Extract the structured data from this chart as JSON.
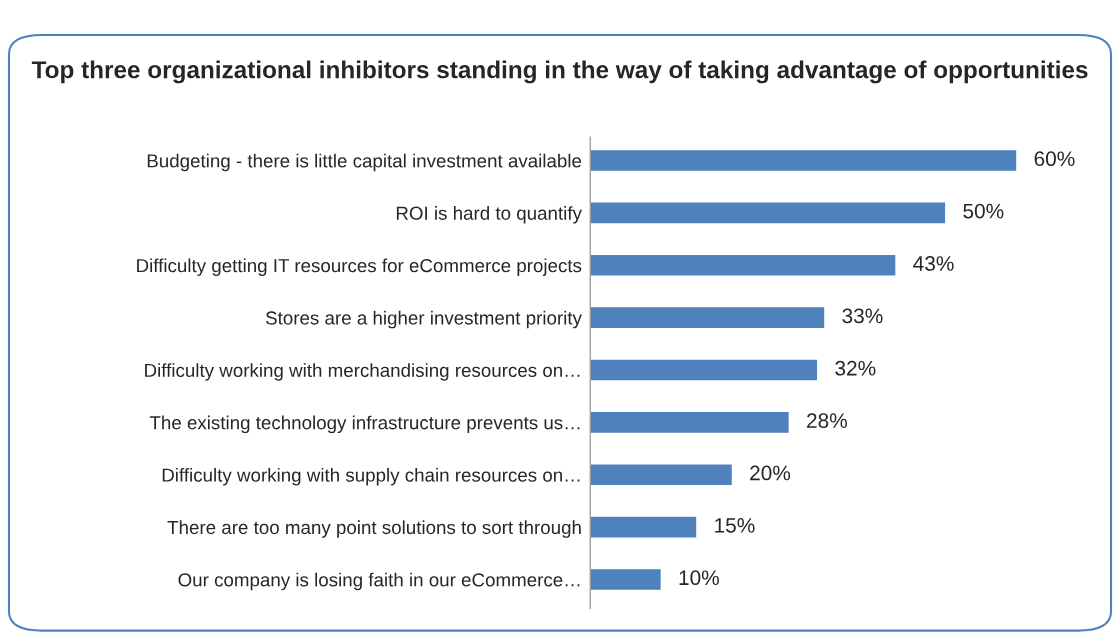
{
  "chart_data": {
    "type": "bar",
    "orientation": "horizontal",
    "title": "Top three organizational inhibitors standing in the way of taking advantage of opportunities",
    "categories": [
      "Budgeting - there is little capital investment available",
      "ROI is hard to quantify",
      "Difficulty getting IT resources for eCommerce projects",
      "Stores are a higher investment priority",
      "Difficulty working with merchandising resources on…",
      "The existing technology infrastructure prevents us…",
      "Difficulty working with supply chain resources on…",
      "There are too many point solutions to sort through",
      "Our company is losing faith in our eCommerce…"
    ],
    "values": [
      60,
      50,
      43,
      33,
      32,
      28,
      20,
      15,
      10
    ],
    "value_labels": [
      "60%",
      "50%",
      "43%",
      "33%",
      "32%",
      "28%",
      "20%",
      "15%",
      "10%"
    ],
    "color": "#4f81bd",
    "grid": false,
    "legend": false
  }
}
